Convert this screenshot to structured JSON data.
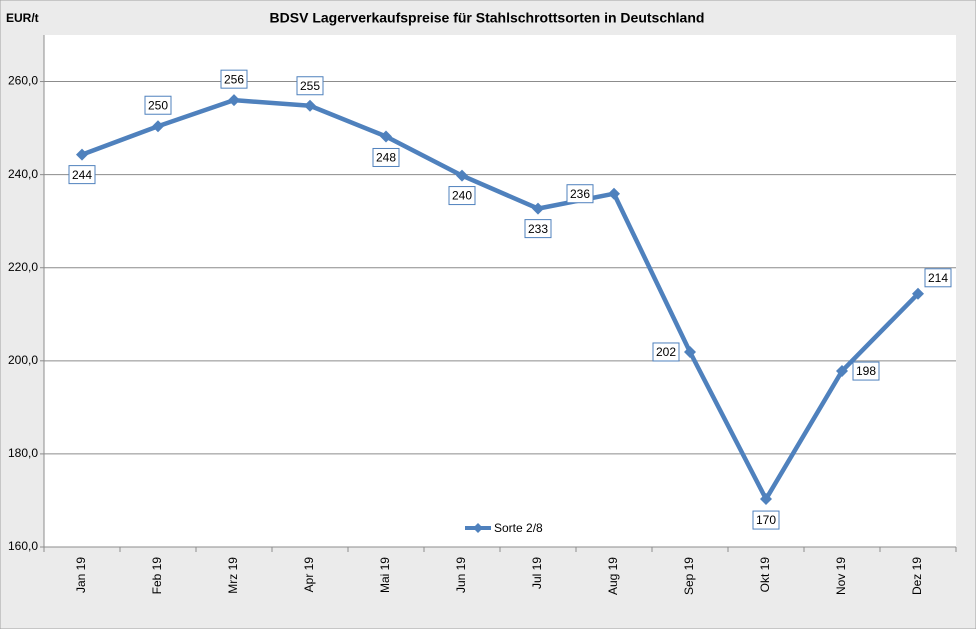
{
  "chart_data": {
    "type": "line",
    "title": "BDSV Lagerverkaufspreise für Stahlschrottsorten in Deutschland",
    "y_label": "EUR/t",
    "categories": [
      "Jan 19",
      "Feb 19",
      "Mrz 19",
      "Apr 19",
      "Mai 19",
      "Jun 19",
      "Jul 19",
      "Aug 19",
      "Sep 19",
      "Okt 19",
      "Nov 19",
      "Dez 19"
    ],
    "series": [
      {
        "name": "Sorte 2/8",
        "color": "#4f81bd",
        "values": [
          244.3,
          250.4,
          256.0,
          254.8,
          248.2,
          239.8,
          232.7,
          235.9,
          201.9,
          170.3,
          197.8,
          214.4
        ],
        "value_labels": [
          "244",
          "250",
          "256",
          "255",
          "248",
          "240",
          "233",
          "236",
          "202",
          "170",
          "198",
          "214"
        ]
      }
    ],
    "ylim": [
      160,
      270
    ],
    "yticks": [
      {
        "value": 160,
        "label": "160,0"
      },
      {
        "value": 180,
        "label": "180,0"
      },
      {
        "value": 200,
        "label": "200,0"
      },
      {
        "value": 220,
        "label": "220,0"
      },
      {
        "value": 240,
        "label": "240,0"
      },
      {
        "value": 260,
        "label": "260,0"
      }
    ],
    "grid": true,
    "legend": "bottom"
  }
}
